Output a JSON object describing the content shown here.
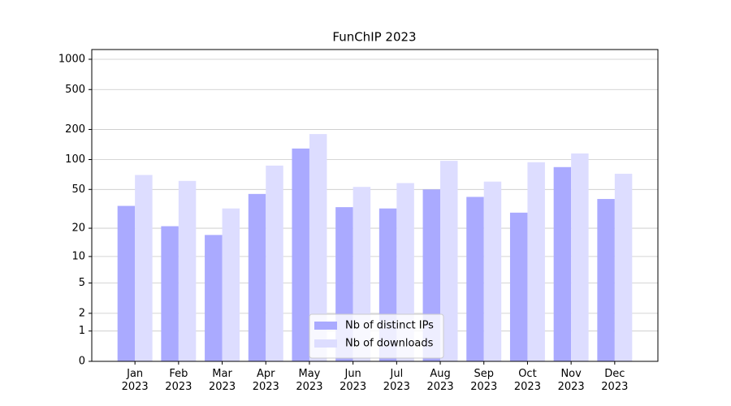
{
  "chart_data": {
    "type": "bar",
    "title": "FunChIP 2023",
    "categories": [
      "Jan\n2023",
      "Feb\n2023",
      "Mar\n2023",
      "Apr\n2023",
      "May\n2023",
      "Jun\n2023",
      "Jul\n2023",
      "Aug\n2023",
      "Sep\n2023",
      "Oct\n2023",
      "Nov\n2023",
      "Dec\n2023"
    ],
    "series": [
      {
        "name": "Nb of distinct IPs",
        "color": "#aaaaff",
        "values": [
          34,
          21,
          17,
          45,
          129,
          33,
          32,
          50,
          42,
          29,
          84,
          40
        ]
      },
      {
        "name": "Nb of downloads",
        "color": "#ddddff",
        "values": [
          70,
          61,
          32,
          87,
          180,
          53,
          58,
          97,
          60,
          94,
          115,
          72
        ]
      }
    ],
    "yscale": "log1p",
    "ylim": [
      0,
      1250
    ],
    "yticks": [
      0,
      1,
      2,
      5,
      10,
      20,
      50,
      100,
      200,
      500,
      1000
    ],
    "grid": true,
    "legend": "lower center"
  }
}
